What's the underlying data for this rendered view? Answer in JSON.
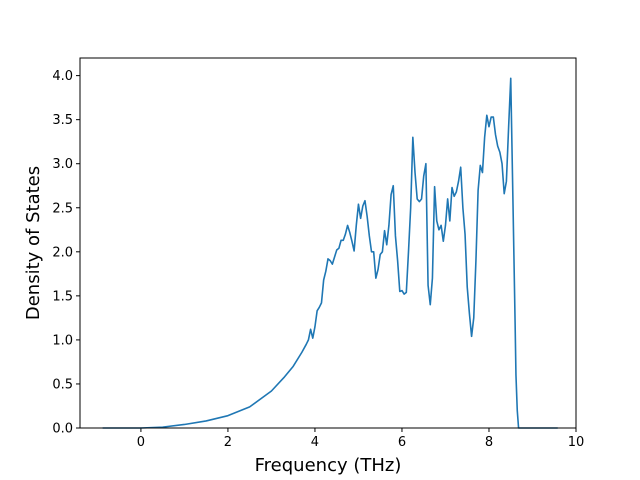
{
  "chart_data": {
    "type": "line",
    "title": "",
    "xlabel": "Frequency (THz)",
    "ylabel": "Density of States",
    "xlim": [
      -1.4,
      10.0
    ],
    "ylim": [
      0.0,
      4.2
    ],
    "xticks": [
      0,
      2,
      4,
      6,
      8,
      10
    ],
    "xtick_labels": [
      "0",
      "2",
      "4",
      "6",
      "8",
      "10"
    ],
    "yticks": [
      0.0,
      0.5,
      1.0,
      1.5,
      2.0,
      2.5,
      3.0,
      3.5,
      4.0
    ],
    "ytick_labels": [
      "0.0",
      "0.5",
      "1.0",
      "1.5",
      "2.0",
      "2.5",
      "3.0",
      "3.5",
      "4.0"
    ],
    "grid": false,
    "line_color": "#1f77b4",
    "series": [
      {
        "x": [
          -0.88,
          0.0,
          0.5,
          1.0,
          1.5,
          2.0,
          2.5,
          3.0,
          3.3,
          3.5,
          3.7,
          3.8,
          3.85,
          3.9,
          3.95,
          4.0,
          4.05,
          4.1,
          4.15,
          4.2,
          4.25,
          4.3,
          4.35,
          4.4,
          4.5,
          4.55,
          4.6,
          4.65,
          4.7,
          4.75,
          4.8,
          4.85,
          4.9,
          4.95,
          5.0,
          5.05,
          5.1,
          5.15,
          5.2,
          5.25,
          5.3,
          5.35,
          5.4,
          5.45,
          5.5,
          5.55,
          5.6,
          5.65,
          5.7,
          5.75,
          5.8,
          5.85,
          5.9,
          5.95,
          6.0,
          6.05,
          6.1,
          6.15,
          6.2,
          6.25,
          6.3,
          6.35,
          6.4,
          6.45,
          6.5,
          6.55,
          6.6,
          6.65,
          6.7,
          6.75,
          6.8,
          6.85,
          6.9,
          6.95,
          7.0,
          7.05,
          7.1,
          7.15,
          7.2,
          7.25,
          7.3,
          7.35,
          7.4,
          7.45,
          7.5,
          7.55,
          7.6,
          7.65,
          7.7,
          7.75,
          7.8,
          7.85,
          7.9,
          7.95,
          8.0,
          8.05,
          8.1,
          8.15,
          8.2,
          8.25,
          8.3,
          8.35,
          8.4,
          8.45,
          8.5,
          8.55,
          8.6,
          8.62,
          8.65,
          8.68,
          8.72,
          8.8,
          9.0,
          9.58
        ],
        "y": [
          0.0,
          0.0,
          0.01,
          0.04,
          0.08,
          0.14,
          0.24,
          0.42,
          0.58,
          0.7,
          0.86,
          0.95,
          1.0,
          1.12,
          1.02,
          1.15,
          1.33,
          1.37,
          1.42,
          1.68,
          1.78,
          1.92,
          1.9,
          1.86,
          2.02,
          2.04,
          2.13,
          2.13,
          2.2,
          2.3,
          2.22,
          2.12,
          2.01,
          2.3,
          2.54,
          2.38,
          2.52,
          2.58,
          2.4,
          2.18,
          2.0,
          2.0,
          1.7,
          1.8,
          1.97,
          2.0,
          2.24,
          2.08,
          2.3,
          2.65,
          2.75,
          2.18,
          1.9,
          1.55,
          1.56,
          1.52,
          1.54,
          2.0,
          2.5,
          3.3,
          2.9,
          2.6,
          2.57,
          2.6,
          2.86,
          3.0,
          1.62,
          1.4,
          1.7,
          2.74,
          2.35,
          2.25,
          2.3,
          2.12,
          2.3,
          2.6,
          2.35,
          2.73,
          2.63,
          2.68,
          2.8,
          2.96,
          2.5,
          2.2,
          1.6,
          1.3,
          1.04,
          1.25,
          1.9,
          2.7,
          2.98,
          2.9,
          3.3,
          3.55,
          3.42,
          3.53,
          3.53,
          3.33,
          3.2,
          3.13,
          3.0,
          2.66,
          2.8,
          3.4,
          3.97,
          2.6,
          1.2,
          0.6,
          0.2,
          0.0,
          0.0,
          0.0,
          0.0,
          0.0
        ]
      }
    ]
  }
}
